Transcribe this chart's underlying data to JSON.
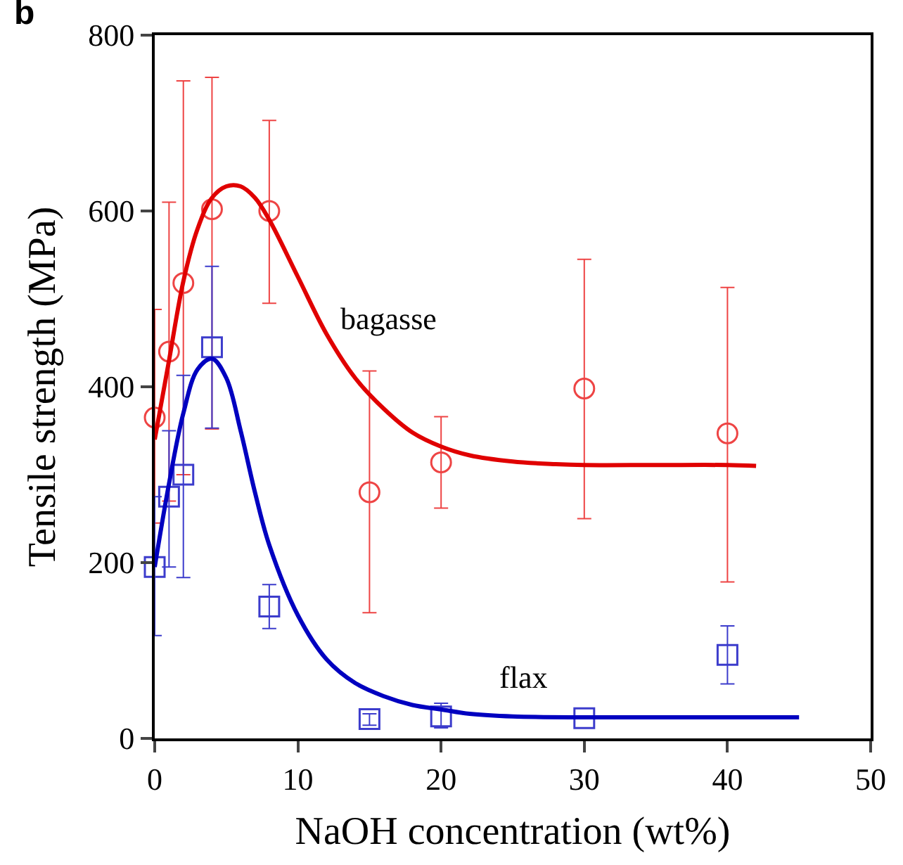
{
  "chart_data": {
    "type": "scatter",
    "xlabel": "NaOH concentration (wt%)",
    "ylabel": "Tensile strength (MPa)",
    "xlim": [
      0,
      50
    ],
    "ylim": [
      0,
      800
    ],
    "xticks": [
      0,
      10,
      20,
      30,
      40,
      50
    ],
    "yticks": [
      0,
      200,
      400,
      600,
      800
    ],
    "legend": false,
    "annotations": [
      "b"
    ],
    "series": [
      {
        "marker": "circle",
        "color": "#ee4444",
        "x": [
          0,
          1,
          2,
          4,
          8,
          15,
          20,
          30,
          40
        ],
        "values": [
          365,
          440,
          518,
          602,
          600,
          280,
          314,
          398,
          347
        ],
        "errors": [
          [
            245,
            488
          ],
          [
            270,
            610
          ],
          [
            300,
            748
          ],
          [
            352,
            752
          ],
          [
            495,
            703
          ],
          [
            143,
            418
          ],
          [
            262,
            366
          ],
          [
            250,
            545
          ],
          [
            178,
            513
          ]
        ]
      },
      {
        "marker": "square",
        "color": "#3c3ccc",
        "x": [
          0,
          1,
          2,
          4,
          8,
          15,
          20,
          30,
          40
        ],
        "values": [
          195,
          275,
          300,
          445,
          150,
          22,
          25,
          23,
          95
        ],
        "errors": [
          [
            117,
            275
          ],
          [
            195,
            350
          ],
          [
            183,
            413
          ],
          [
            353,
            537
          ],
          [
            125,
            175
          ],
          [
            15,
            28
          ],
          [
            12,
            40
          ],
          null,
          [
            62,
            128
          ]
        ]
      },
      {
        "type": "line",
        "name": "bagasse",
        "marker": "none",
        "color": "#e00000",
        "x": [
          0,
          1,
          2,
          3,
          4,
          5,
          6,
          7,
          8,
          10,
          12,
          14,
          16,
          18,
          20,
          22,
          25,
          28,
          30,
          35,
          40,
          42
        ],
        "values": [
          340,
          430,
          520,
          580,
          615,
          628,
          628,
          615,
          590,
          525,
          460,
          410,
          375,
          348,
          332,
          322,
          315,
          312,
          311,
          311,
          311,
          310
        ]
      },
      {
        "type": "line",
        "name": "flax",
        "marker": "none",
        "color": "#0000c0",
        "x": [
          0,
          1,
          2,
          3,
          4,
          5,
          6,
          7,
          8,
          10,
          12,
          14,
          16,
          18,
          20,
          22,
          25,
          30,
          35,
          40,
          45
        ],
        "values": [
          195,
          290,
          370,
          420,
          432,
          410,
          350,
          280,
          220,
          140,
          90,
          63,
          48,
          38,
          33,
          28,
          25,
          24,
          24,
          24,
          24
        ]
      }
    ]
  }
}
